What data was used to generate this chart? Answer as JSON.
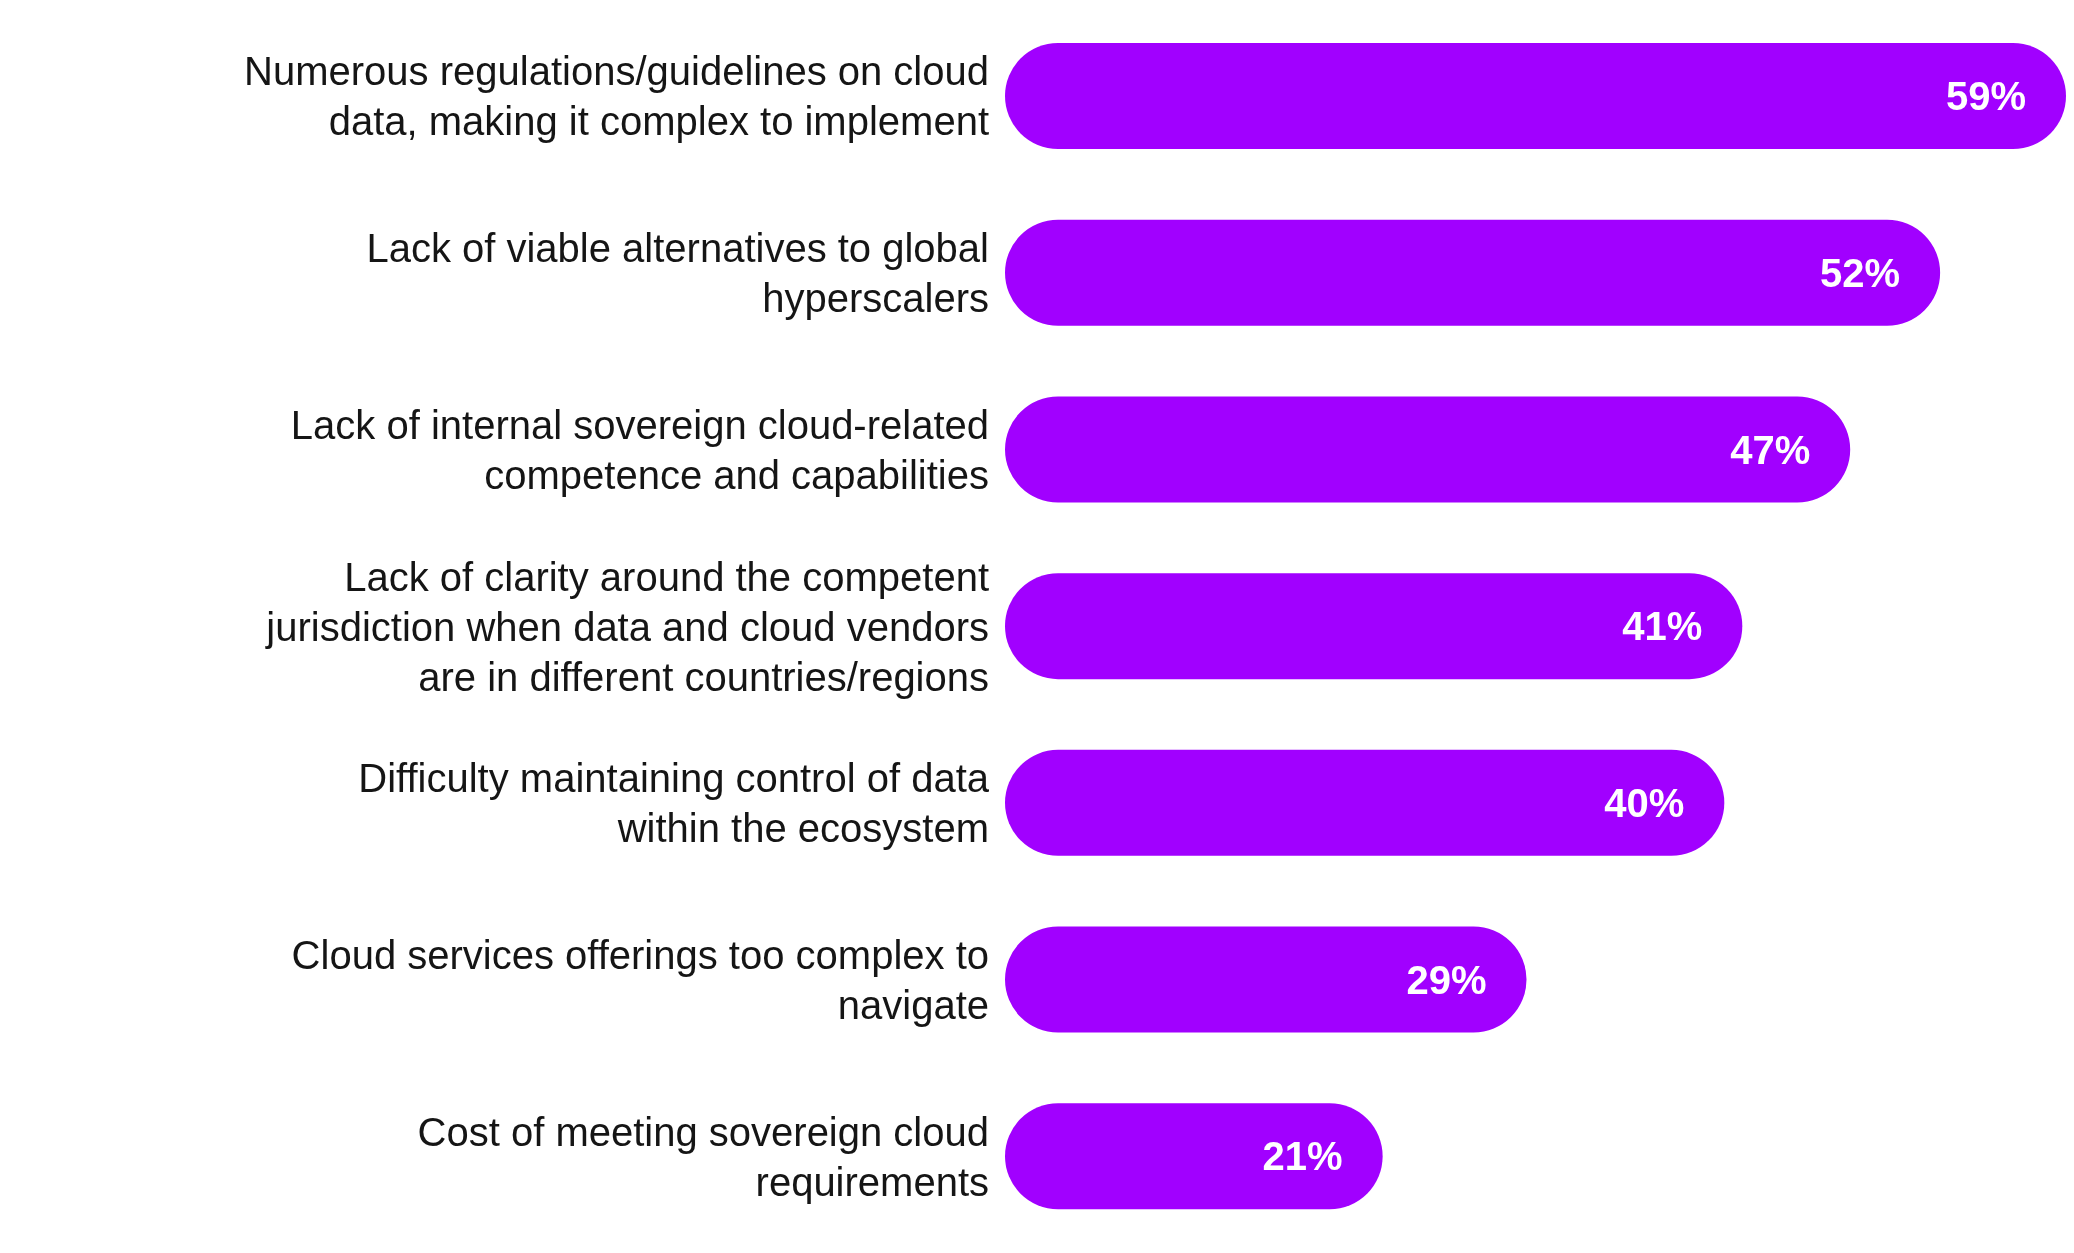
{
  "chart_data": {
    "type": "bar",
    "orientation": "horizontal",
    "categories": [
      "Numerous regulations/guidelines on cloud data, making it complex to implement",
      "Lack of viable alternatives to global hyperscalers",
      "Lack of internal sovereign cloud-related competence and capabilities",
      "Lack of clarity around the competent jurisdiction when data and cloud vendors are in different countries/regions",
      "Difficulty maintaining control of data within the ecosystem",
      "Cloud services offerings too complex to navigate",
      "Cost of meeting sovereign cloud requirements"
    ],
    "values": [
      59,
      52,
      47,
      41,
      40,
      29,
      21
    ],
    "value_labels": [
      "59%",
      "52%",
      "47%",
      "41%",
      "40%",
      "29%",
      "21%"
    ],
    "color": "#a100ff"
  }
}
